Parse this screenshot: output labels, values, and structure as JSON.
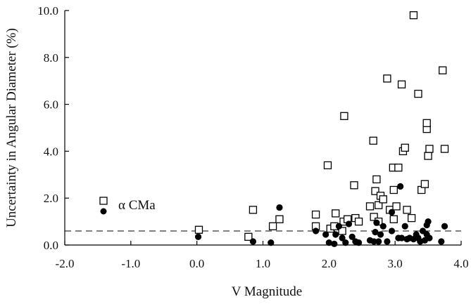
{
  "chart_data": {
    "type": "scatter",
    "title": "",
    "xlabel": "V Magnitude",
    "ylabel": "Uncertainty in Angular Diameter (%)",
    "xlim": [
      -2.0,
      4.0
    ],
    "ylim": [
      0.0,
      10.0
    ],
    "xticks": [
      "-2.0",
      "-1.0",
      "0.0",
      "1.0",
      "2.0",
      "3.0",
      "4.0"
    ],
    "yticks": [
      "0.0",
      "2.0",
      "4.0",
      "6.0",
      "8.0",
      "10.0"
    ],
    "grid": false,
    "reference_line": {
      "y": 0.6,
      "style": "dashed"
    },
    "legend": {
      "placement": "left",
      "label": "α CMa"
    },
    "series": [
      {
        "marker": "open-square",
        "points": [
          [
            0.03,
            0.65
          ],
          [
            0.78,
            0.35
          ],
          [
            0.85,
            1.5
          ],
          [
            1.15,
            0.8
          ],
          [
            1.25,
            1.1
          ],
          [
            1.8,
            1.3
          ],
          [
            1.8,
            0.8
          ],
          [
            1.98,
            3.4
          ],
          [
            2.02,
            0.7
          ],
          [
            2.08,
            0.8
          ],
          [
            2.1,
            1.35
          ],
          [
            2.2,
            0.6
          ],
          [
            2.22,
            1.0
          ],
          [
            2.23,
            5.5
          ],
          [
            2.28,
            1.1
          ],
          [
            2.38,
            2.55
          ],
          [
            2.4,
            1.15
          ],
          [
            2.45,
            1.0
          ],
          [
            2.62,
            1.65
          ],
          [
            2.67,
            4.45
          ],
          [
            2.68,
            1.2
          ],
          [
            2.7,
            2.3
          ],
          [
            2.72,
            2.8
          ],
          [
            2.75,
            1.0
          ],
          [
            2.75,
            1.7
          ],
          [
            2.78,
            2.1
          ],
          [
            2.82,
            1.95
          ],
          [
            2.88,
            7.1
          ],
          [
            2.92,
            1.5
          ],
          [
            2.97,
            3.3
          ],
          [
            2.98,
            1.1
          ],
          [
            2.98,
            2.35
          ],
          [
            3.02,
            1.65
          ],
          [
            3.05,
            3.3
          ],
          [
            3.1,
            6.85
          ],
          [
            3.12,
            4.0
          ],
          [
            3.15,
            4.15
          ],
          [
            3.18,
            1.5
          ],
          [
            3.25,
            1.15
          ],
          [
            3.28,
            9.8
          ],
          [
            3.35,
            6.45
          ],
          [
            3.4,
            2.35
          ],
          [
            3.45,
            2.6
          ],
          [
            3.48,
            4.95
          ],
          [
            3.48,
            5.2
          ],
          [
            3.5,
            3.8
          ],
          [
            3.52,
            4.1
          ],
          [
            3.72,
            7.45
          ],
          [
            3.75,
            4.1
          ]
        ]
      },
      {
        "marker": "filled-circle",
        "points": [
          [
            0.02,
            0.35
          ],
          [
            0.85,
            0.15
          ],
          [
            1.12,
            0.1
          ],
          [
            1.25,
            1.6
          ],
          [
            1.8,
            0.6
          ],
          [
            1.95,
            0.45
          ],
          [
            2.0,
            0.1
          ],
          [
            2.08,
            0.05
          ],
          [
            2.1,
            0.45
          ],
          [
            2.15,
            0.8
          ],
          [
            2.2,
            0.3
          ],
          [
            2.25,
            0.1
          ],
          [
            2.3,
            0.9
          ],
          [
            2.35,
            0.35
          ],
          [
            2.4,
            0.15
          ],
          [
            2.45,
            0.1
          ],
          [
            2.62,
            0.2
          ],
          [
            2.68,
            0.15
          ],
          [
            2.7,
            0.55
          ],
          [
            2.72,
            0.95
          ],
          [
            2.75,
            0.15
          ],
          [
            2.78,
            0.45
          ],
          [
            2.82,
            0.8
          ],
          [
            2.88,
            0.15
          ],
          [
            2.95,
            1.4
          ],
          [
            2.95,
            0.6
          ],
          [
            3.05,
            0.3
          ],
          [
            3.08,
            2.5
          ],
          [
            3.1,
            0.3
          ],
          [
            3.15,
            0.8
          ],
          [
            3.18,
            0.25
          ],
          [
            3.22,
            0.3
          ],
          [
            3.28,
            0.25
          ],
          [
            3.32,
            0.45
          ],
          [
            3.35,
            0.3
          ],
          [
            3.38,
            0.15
          ],
          [
            3.42,
            0.6
          ],
          [
            3.45,
            0.2
          ],
          [
            3.48,
            0.45
          ],
          [
            3.48,
            0.85
          ],
          [
            3.5,
            1.0
          ],
          [
            3.52,
            0.3
          ],
          [
            3.7,
            0.15
          ],
          [
            3.75,
            0.8
          ]
        ]
      }
    ]
  }
}
